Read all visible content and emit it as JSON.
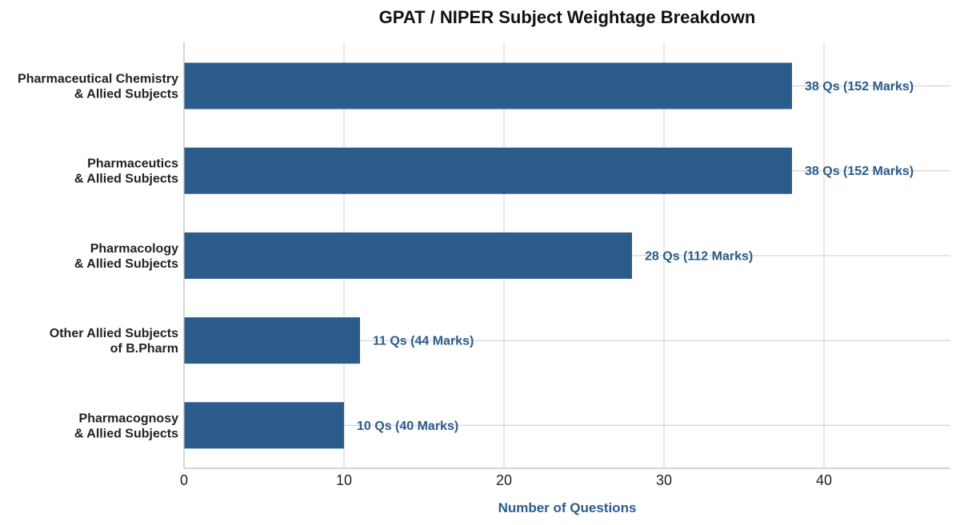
{
  "chart_data": {
    "type": "bar",
    "orientation": "horizontal",
    "title": "GPAT / NIPER Subject Weightage Breakdown",
    "xlabel": "Number of Questions",
    "ylabel": "",
    "xlim": [
      0,
      48
    ],
    "xticks": [
      0,
      10,
      20,
      30,
      40
    ],
    "grid": true,
    "colors": {
      "bar": "#2b5c8c",
      "label": "#2b5c8c",
      "grid": "#cccccc",
      "axis": "#bbbbbb"
    },
    "categories": [
      [
        "Pharmaceutical Chemistry",
        "& Allied Subjects"
      ],
      [
        "Pharmaceutics",
        "& Allied Subjects"
      ],
      [
        "Pharmacology",
        "& Allied Subjects"
      ],
      [
        "Other Allied Subjects",
        "of B.Pharm"
      ],
      [
        "Pharmacognosy",
        "& Allied Subjects"
      ]
    ],
    "values": [
      38,
      38,
      28,
      11,
      10
    ],
    "data_labels": [
      "38 Qs  (152 Marks)",
      "38 Qs  (152 Marks)",
      "28 Qs  (112 Marks)",
      "11 Qs  (44 Marks)",
      "10 Qs  (40 Marks)"
    ]
  }
}
